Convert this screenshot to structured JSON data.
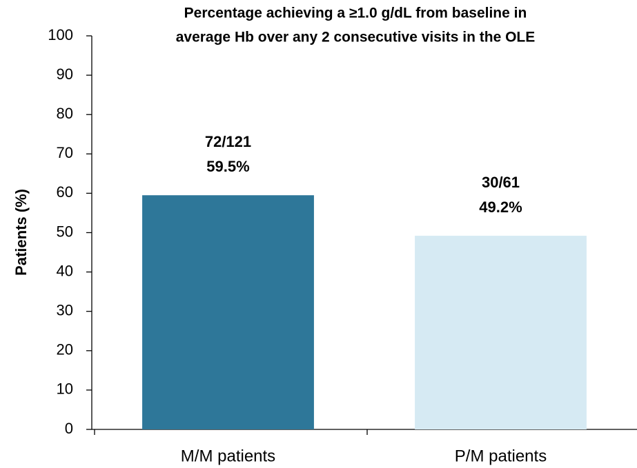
{
  "chart_data": {
    "type": "bar",
    "title": [
      "Percentage achieving a ≥1.0 g/dL from baseline in",
      "average Hb over any 2 consecutive visits in the OLE"
    ],
    "ylabel": "Patients (%)",
    "categories": [
      "M/M patients",
      "P/M patients"
    ],
    "values": [
      59.5,
      49.2
    ],
    "value_labels": [
      "59.5%",
      "49.2%"
    ],
    "annotations": [
      "72/121",
      "30/61"
    ],
    "colors": [
      "#2e7799",
      "#d6eaf3"
    ],
    "ylim": [
      0,
      100
    ],
    "yticks": [
      0,
      10,
      20,
      30,
      40,
      50,
      60,
      70,
      80,
      90,
      100
    ],
    "grid": false
  }
}
